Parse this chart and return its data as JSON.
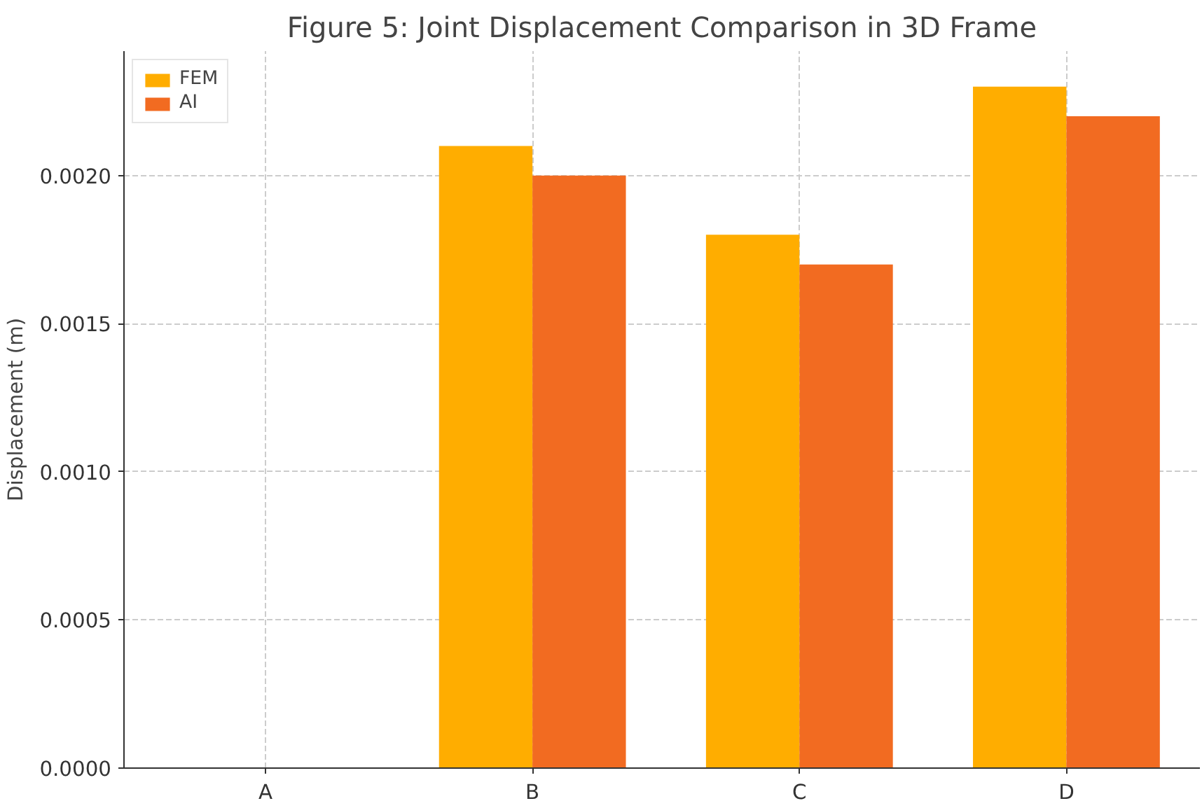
{
  "chart_data": {
    "type": "bar",
    "title": "Figure 5: Joint Displacement Comparison in 3D Frame",
    "ylabel": "Displacement (m)",
    "categories": [
      "A",
      "B",
      "C",
      "D"
    ],
    "series": [
      {
        "name": "FEM",
        "color": "#ffad00",
        "values": [
          0,
          0.0021,
          0.0018,
          0.0023
        ]
      },
      {
        "name": "AI",
        "color": "#f26b21",
        "values": [
          0,
          0.002,
          0.0017,
          0.0022
        ]
      }
    ],
    "ylim": [
      0,
      0.00242
    ],
    "yticks": [
      {
        "value": 0,
        "label": "0.0000"
      },
      {
        "value": 0.0005,
        "label": "0.0005"
      },
      {
        "value": 0.001,
        "label": "0.0010"
      },
      {
        "value": 0.0015,
        "label": "0.0015"
      },
      {
        "value": 0.002,
        "label": "0.0020"
      }
    ],
    "grid": true,
    "legend": "top left"
  }
}
